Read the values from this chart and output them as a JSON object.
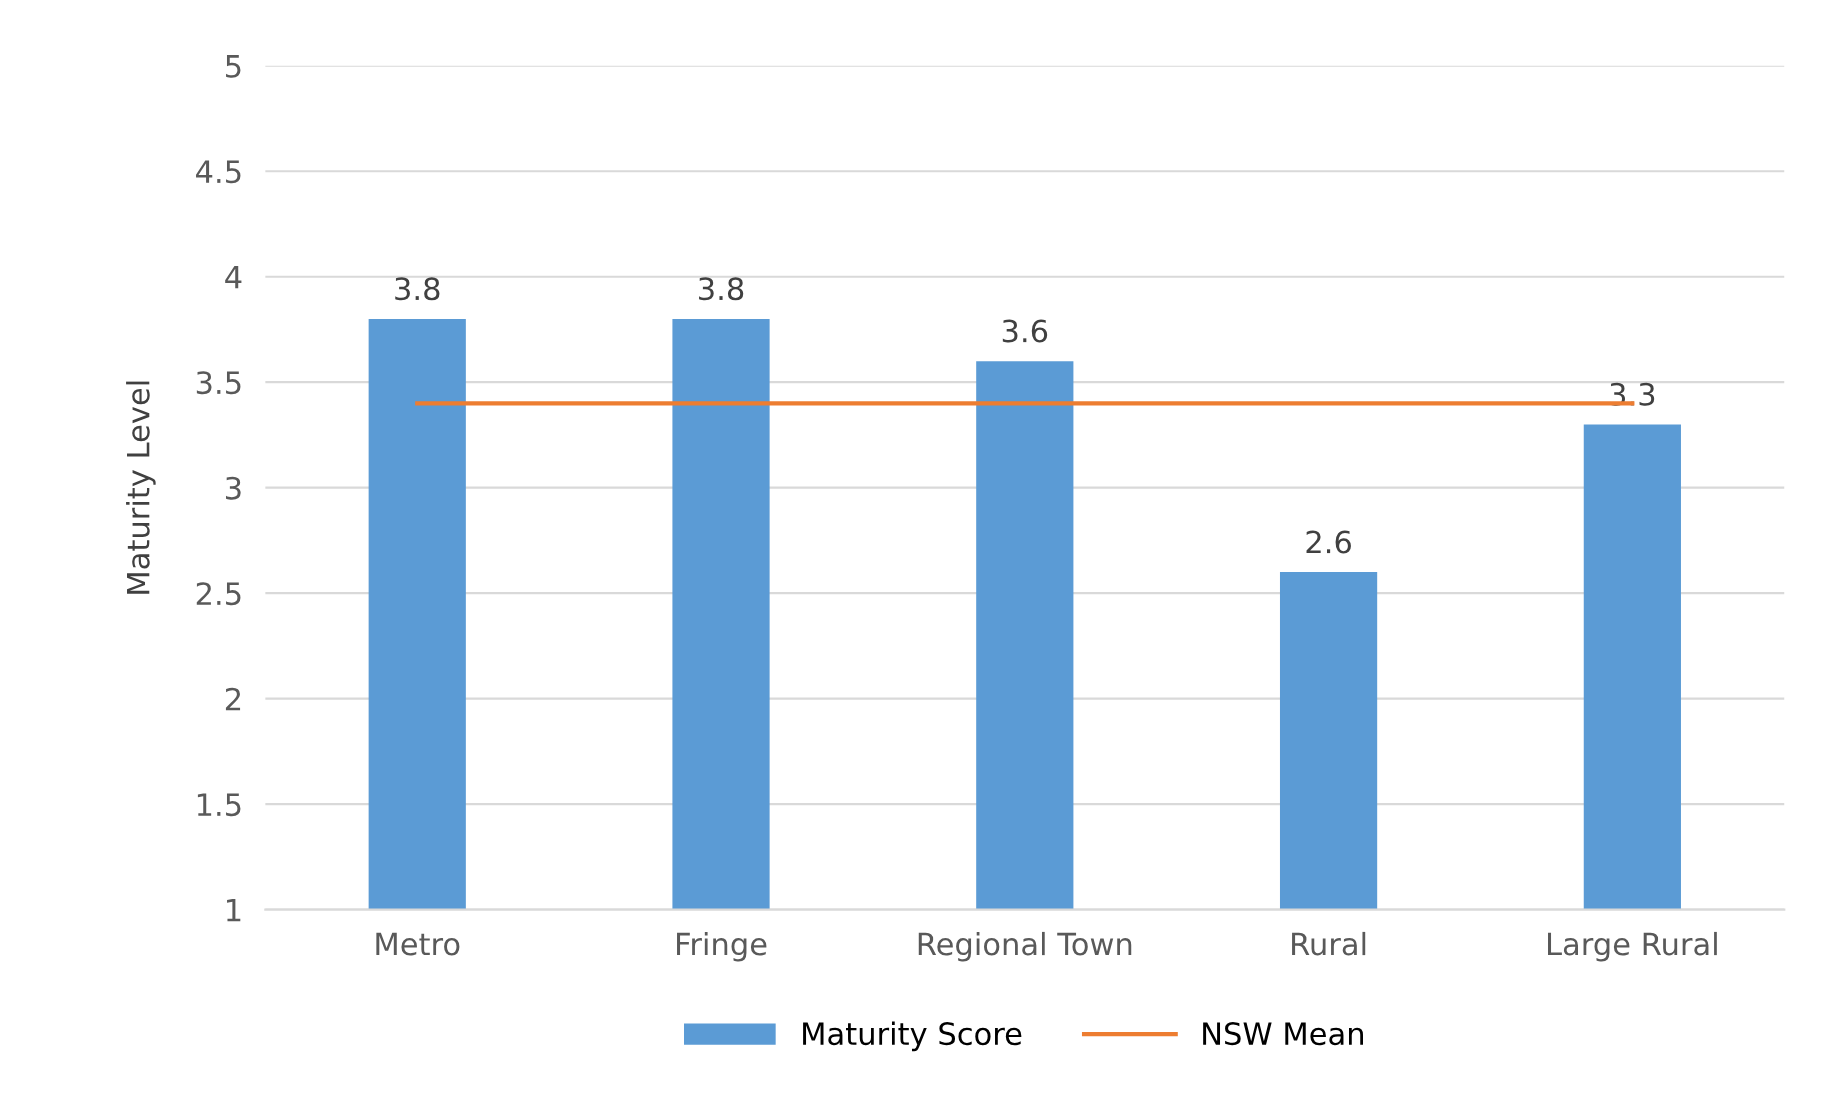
{
  "chart_data": {
    "type": "bar",
    "ylabel": "Maturity Level",
    "categories": [
      "Metro",
      "Fringe",
      "Regional Town",
      "Rural",
      "Large Rural"
    ],
    "series": [
      {
        "name": "Maturity Score",
        "color": "#5b9bd5",
        "values": [
          3.8,
          3.8,
          3.6,
          2.6,
          3.3
        ],
        "value_labels": [
          "3.8",
          "3.8",
          "3.6",
          "2.6",
          "3.3"
        ]
      },
      {
        "name": "NSW Mean",
        "type": "line",
        "color": "#ed7d31",
        "values": [
          3.4,
          3.4,
          3.4,
          3.4,
          3.4
        ],
        "marker": "none",
        "line_style": "solid"
      }
    ],
    "ylim": [
      1,
      5
    ],
    "yticks": [
      1,
      1.5,
      2,
      2.5,
      3,
      3.5,
      4,
      4.5,
      5
    ],
    "grid": "y",
    "legend": "bottom"
  }
}
